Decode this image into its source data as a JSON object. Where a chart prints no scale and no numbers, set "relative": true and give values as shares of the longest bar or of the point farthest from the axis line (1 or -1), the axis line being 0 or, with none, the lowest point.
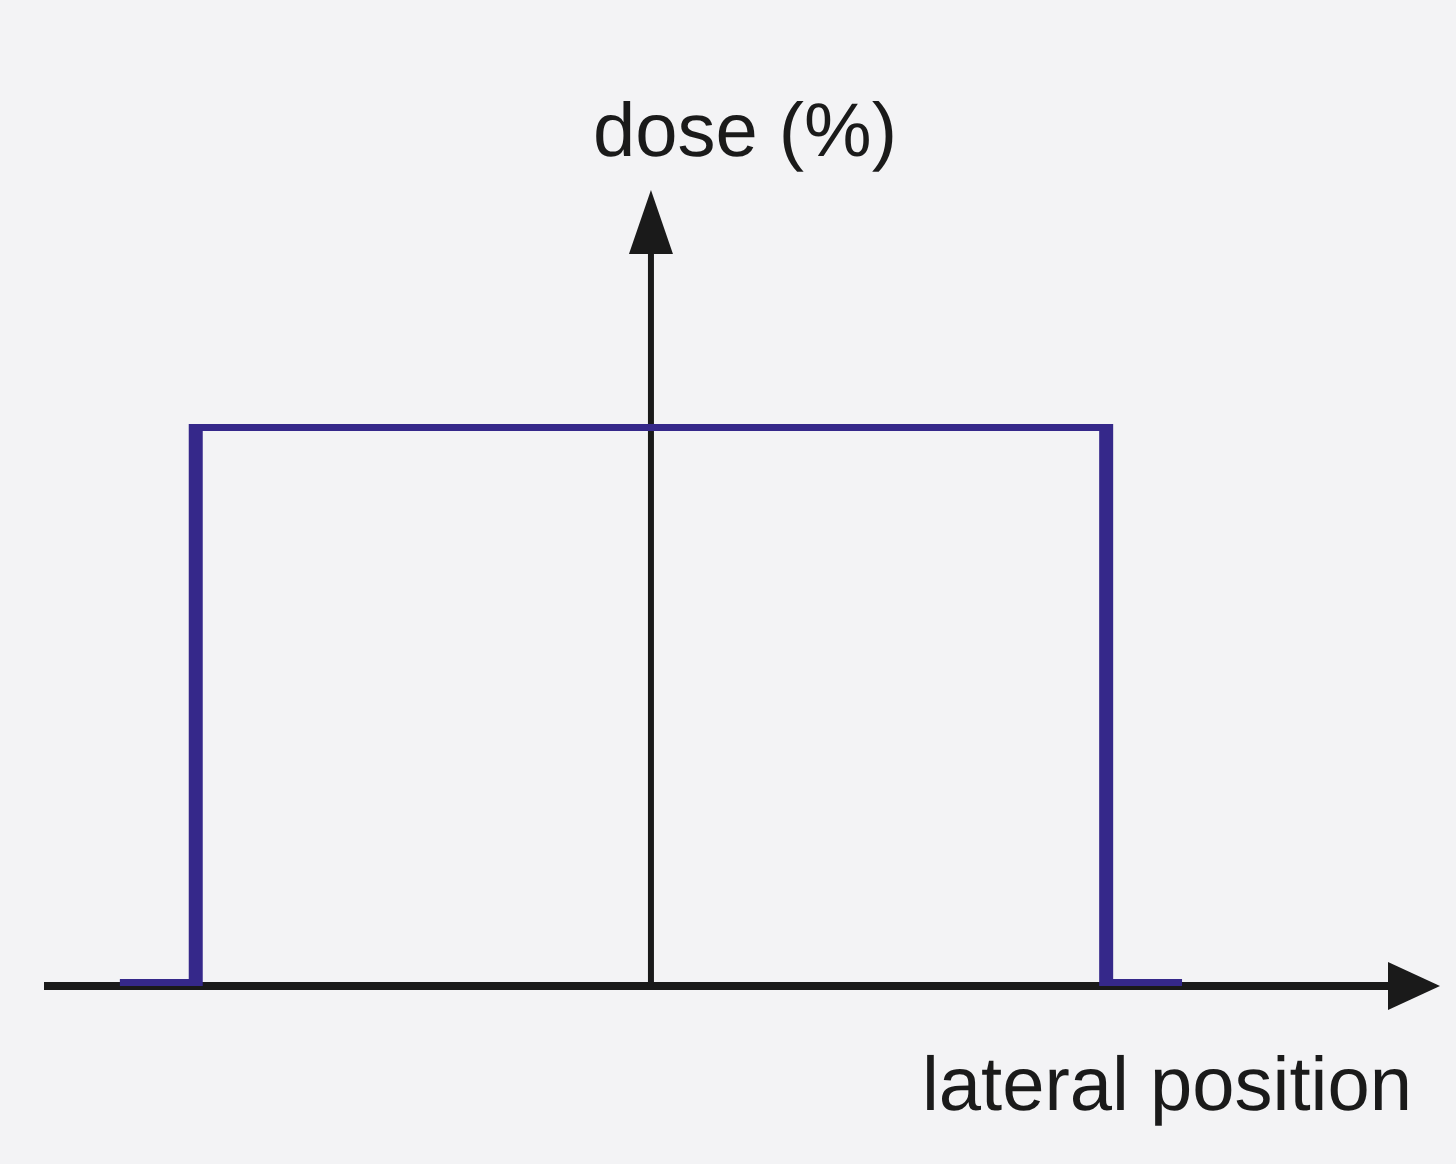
{
  "chart_data": {
    "type": "step",
    "xlabel": "lateral position",
    "ylabel": "dose (%)",
    "relative": true,
    "categories": [
      null,
      null,
      null,
      null,
      null,
      null,
      null,
      null,
      null,
      null,
      null,
      null,
      null,
      null,
      null
    ],
    "values": [
      0,
      1,
      1,
      1,
      1,
      1,
      1,
      1,
      1,
      1,
      1,
      1,
      1,
      0,
      0
    ],
    "color": "#35288a"
  }
}
